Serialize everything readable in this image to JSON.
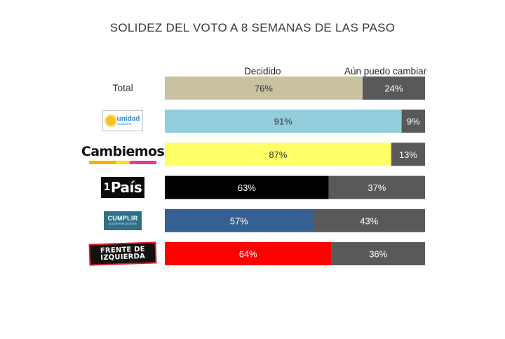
{
  "chart_data": {
    "type": "bar",
    "stacked": true,
    "orientation": "horizontal",
    "title": "SOLIDEZ DEL VOTO A 8 SEMANAS DE LAS PASO",
    "categories": [
      "Total",
      "unidad ciudadana",
      "Cambiemos",
      "1País",
      "CUMPLIR",
      "FRENTE DE IZQUIERDA"
    ],
    "series": [
      {
        "name": "Decidido",
        "values": [
          76,
          91,
          87,
          63,
          57,
          64
        ]
      },
      {
        "name": "Aún puedo cambiar",
        "values": [
          24,
          9,
          13,
          37,
          43,
          36
        ]
      }
    ],
    "data_labels": {
      "decidido": [
        "76%",
        "91%",
        "87%",
        "63%",
        "57%",
        "64%"
      ],
      "cambiar": [
        "24%",
        "9%",
        "13%",
        "37%",
        "43%",
        "36%"
      ]
    },
    "xlim": [
      0,
      100
    ],
    "legend_position": "top",
    "grid": false,
    "colors": {
      "decidido": [
        "#c9c2a0",
        "#92cddc",
        "#ffff66",
        "#000000",
        "#376092",
        "#ff0000"
      ],
      "decidido_label": [
        "#333333",
        "#333333",
        "#333333",
        "#ffffff",
        "#ffffff",
        "#ffffff"
      ],
      "cambiar": "#595959",
      "cambiar_label": "#ffffff"
    }
  },
  "legend": {
    "decidido": "Decidido",
    "cambiar": "Aún puedo cambiar"
  },
  "logos": {
    "total_label": "Total",
    "unidad": {
      "main": "unidad",
      "sub": "ciudadana",
      "icon": "sun-icon",
      "color": "#2a8fd6"
    },
    "cambiemos": {
      "text": "Cambiemos",
      "stripes": [
        "#f9b000",
        "#f9b000",
        "#ffe100",
        "#e33e8e",
        "#e33e8e"
      ]
    },
    "pais": {
      "one": "1",
      "text": "País"
    },
    "cumplir": {
      "main": "CUMPLIR",
      "sub": "ACCIÓN POR LA GENTE"
    },
    "fit": {
      "line1": "FRENTE DE",
      "line2": "IZQUIERDA"
    }
  }
}
